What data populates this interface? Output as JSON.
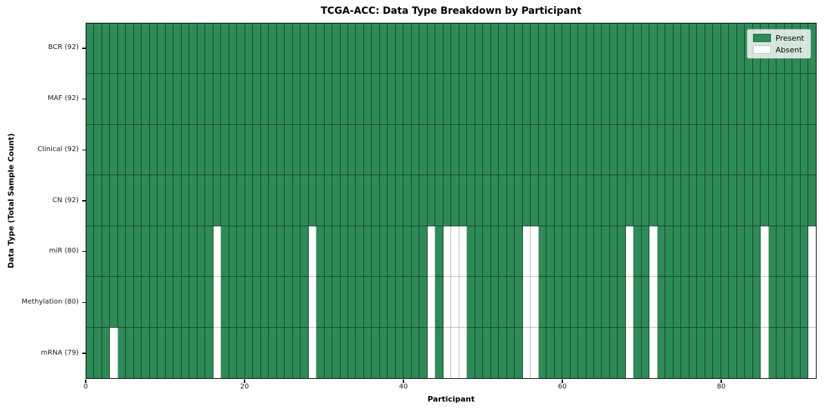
{
  "chart_data": {
    "type": "heatmap",
    "title": "TCGA-ACC: Data Type Breakdown by Participant",
    "xlabel": "Participant",
    "ylabel": "Data Type (Total Sample Count)",
    "n_participants": 92,
    "x_ticks": [
      0,
      20,
      40,
      60,
      80
    ],
    "grid": true,
    "legend_position": "upper right",
    "legend": [
      {
        "label": "Present",
        "color": "#2e8b57"
      },
      {
        "label": "Absent",
        "color": "#ffffff"
      }
    ],
    "rows": [
      {
        "label": "BCR (92)",
        "data_type": "BCR",
        "present_count": 92,
        "absent_participants": []
      },
      {
        "label": "MAF (92)",
        "data_type": "MAF",
        "present_count": 92,
        "absent_participants": []
      },
      {
        "label": "Clinical (92)",
        "data_type": "Clinical",
        "present_count": 92,
        "absent_participants": []
      },
      {
        "label": "CN (92)",
        "data_type": "CN",
        "present_count": 92,
        "absent_participants": []
      },
      {
        "label": "miR (80)",
        "data_type": "miR",
        "present_count": 80,
        "absent_participants": [
          16,
          28,
          43,
          45,
          46,
          47,
          55,
          56,
          68,
          71,
          85,
          91
        ]
      },
      {
        "label": "Methylation (80)",
        "data_type": "Methylation",
        "present_count": 80,
        "absent_participants": [
          16,
          28,
          43,
          45,
          46,
          47,
          55,
          56,
          68,
          71,
          85,
          91
        ]
      },
      {
        "label": "mRNA (79)",
        "data_type": "mRNA",
        "present_count": 79,
        "absent_participants": [
          3,
          16,
          28,
          43,
          45,
          46,
          47,
          55,
          56,
          68,
          71,
          85,
          91
        ]
      }
    ],
    "colors": {
      "present": "#2e8b57",
      "absent": "#ffffff",
      "grid_on_present": "rgba(0,0,0,0.5)",
      "grid_on_absent": "#bdbdbd",
      "frame": "#000000"
    }
  }
}
